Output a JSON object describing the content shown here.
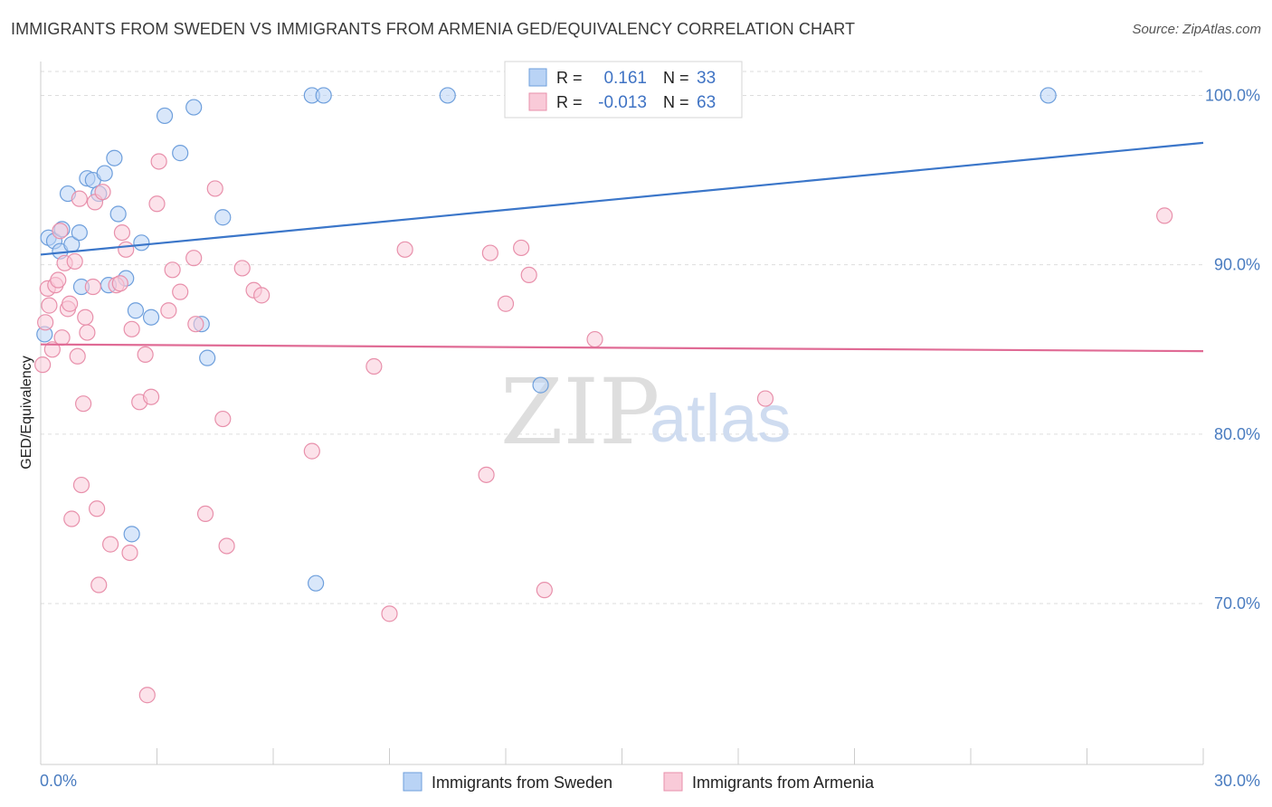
{
  "header": {
    "title": "IMMIGRANTS FROM SWEDEN VS IMMIGRANTS FROM ARMENIA GED/EQUIVALENCY CORRELATION CHART",
    "source": "Source: ZipAtlas.com"
  },
  "watermark": {
    "zip": "ZIP",
    "atlas": "atlas"
  },
  "colors": {
    "sweden_fill": "#b9d3f5",
    "sweden_stroke": "#6e9fdc",
    "sweden_line": "#3b76c9",
    "armenia_fill": "#f9cad8",
    "armenia_stroke": "#e890ab",
    "armenia_line": "#e06b95",
    "axis_text": "#4a7cc0",
    "grid": "#dddddd"
  },
  "legend": {
    "row1": {
      "r_label": "R =",
      "r_value": "0.161",
      "n_label": "N =",
      "n_value": "33"
    },
    "row2": {
      "r_label": "R =",
      "r_value": "-0.013",
      "n_label": "N =",
      "n_value": "63"
    }
  },
  "chart_data": {
    "type": "scatter",
    "title": "IMMIGRANTS FROM SWEDEN VS IMMIGRANTS FROM ARMENIA GED/EQUIVALENCY CORRELATION CHART",
    "xlabel": "",
    "ylabel": "GED/Equivalency",
    "xlim": [
      0,
      30
    ],
    "ylim": [
      60.5,
      102
    ],
    "x_tick_labels": {
      "left": "0.0%",
      "right": "30.0%"
    },
    "y_ticks": [
      {
        "value": 100,
        "label": "100.0%"
      },
      {
        "value": 90,
        "label": "90.0%"
      },
      {
        "value": 80,
        "label": "80.0%"
      },
      {
        "value": 70,
        "label": "70.0%"
      }
    ],
    "series": [
      {
        "name": "Immigrants from Sweden",
        "r": 0.161,
        "n": 33,
        "trend": {
          "x": [
            0,
            30
          ],
          "y": [
            90.6,
            97.2
          ]
        },
        "points": [
          [
            0.2,
            91.6
          ],
          [
            0.35,
            91.4
          ],
          [
            0.5,
            90.8
          ],
          [
            0.55,
            92.1
          ],
          [
            0.7,
            94.2
          ],
          [
            0.8,
            91.2
          ],
          [
            1.0,
            91.9
          ],
          [
            1.05,
            88.7
          ],
          [
            1.2,
            95.1
          ],
          [
            1.35,
            95.0
          ],
          [
            1.5,
            94.2
          ],
          [
            1.65,
            95.4
          ],
          [
            1.75,
            88.8
          ],
          [
            1.9,
            96.3
          ],
          [
            2.0,
            93.0
          ],
          [
            2.2,
            89.2
          ],
          [
            2.35,
            74.1
          ],
          [
            2.45,
            87.3
          ],
          [
            2.6,
            91.3
          ],
          [
            2.85,
            86.9
          ],
          [
            3.2,
            98.8
          ],
          [
            3.6,
            96.6
          ],
          [
            3.95,
            99.3
          ],
          [
            4.15,
            86.5
          ],
          [
            4.3,
            84.5
          ],
          [
            4.7,
            92.8
          ],
          [
            7.0,
            100.0
          ],
          [
            7.1,
            71.2
          ],
          [
            7.3,
            100.0
          ],
          [
            10.5,
            100.0
          ],
          [
            12.9,
            82.9
          ],
          [
            26.0,
            100.0
          ],
          [
            0.1,
            85.9
          ]
        ]
      },
      {
        "name": "Immigrants from Armenia",
        "r": -0.013,
        "n": 63,
        "trend": {
          "x": [
            0,
            30
          ],
          "y": [
            85.3,
            84.9
          ]
        },
        "points": [
          [
            0.05,
            84.1
          ],
          [
            0.12,
            86.6
          ],
          [
            0.18,
            88.6
          ],
          [
            0.22,
            87.6
          ],
          [
            0.3,
            85.0
          ],
          [
            0.38,
            88.8
          ],
          [
            0.45,
            89.1
          ],
          [
            0.5,
            92.0
          ],
          [
            0.55,
            85.7
          ],
          [
            0.62,
            90.1
          ],
          [
            0.7,
            87.4
          ],
          [
            0.75,
            87.7
          ],
          [
            0.8,
            75.0
          ],
          [
            0.88,
            90.2
          ],
          [
            0.95,
            84.6
          ],
          [
            1.0,
            93.9
          ],
          [
            1.05,
            77.0
          ],
          [
            1.1,
            81.8
          ],
          [
            1.15,
            86.9
          ],
          [
            1.2,
            86.0
          ],
          [
            1.35,
            88.7
          ],
          [
            1.4,
            93.7
          ],
          [
            1.45,
            75.6
          ],
          [
            1.5,
            71.1
          ],
          [
            1.6,
            94.3
          ],
          [
            1.8,
            73.5
          ],
          [
            1.95,
            88.8
          ],
          [
            2.05,
            88.9
          ],
          [
            2.1,
            91.9
          ],
          [
            2.2,
            90.9
          ],
          [
            2.3,
            73.0
          ],
          [
            2.35,
            86.2
          ],
          [
            2.55,
            81.9
          ],
          [
            2.7,
            84.7
          ],
          [
            2.75,
            64.6
          ],
          [
            2.85,
            82.2
          ],
          [
            3.05,
            96.1
          ],
          [
            3.0,
            93.6
          ],
          [
            3.3,
            87.3
          ],
          [
            3.4,
            89.7
          ],
          [
            3.6,
            88.4
          ],
          [
            3.95,
            90.4
          ],
          [
            4.0,
            86.5
          ],
          [
            4.25,
            75.3
          ],
          [
            4.5,
            94.5
          ],
          [
            4.7,
            80.9
          ],
          [
            4.8,
            73.4
          ],
          [
            5.2,
            89.8
          ],
          [
            5.5,
            88.5
          ],
          [
            5.7,
            88.2
          ],
          [
            7.0,
            79.0
          ],
          [
            8.6,
            84.0
          ],
          [
            9.0,
            69.4
          ],
          [
            9.4,
            90.9
          ],
          [
            11.5,
            77.6
          ],
          [
            11.6,
            90.7
          ],
          [
            12.0,
            87.7
          ],
          [
            12.4,
            91.0
          ],
          [
            12.6,
            89.4
          ],
          [
            13.0,
            70.8
          ],
          [
            14.3,
            85.6
          ],
          [
            18.7,
            82.1
          ],
          [
            29.0,
            92.9
          ]
        ]
      }
    ],
    "legend_entries": [
      "Immigrants from Sweden",
      "Immigrants from Armenia"
    ]
  }
}
